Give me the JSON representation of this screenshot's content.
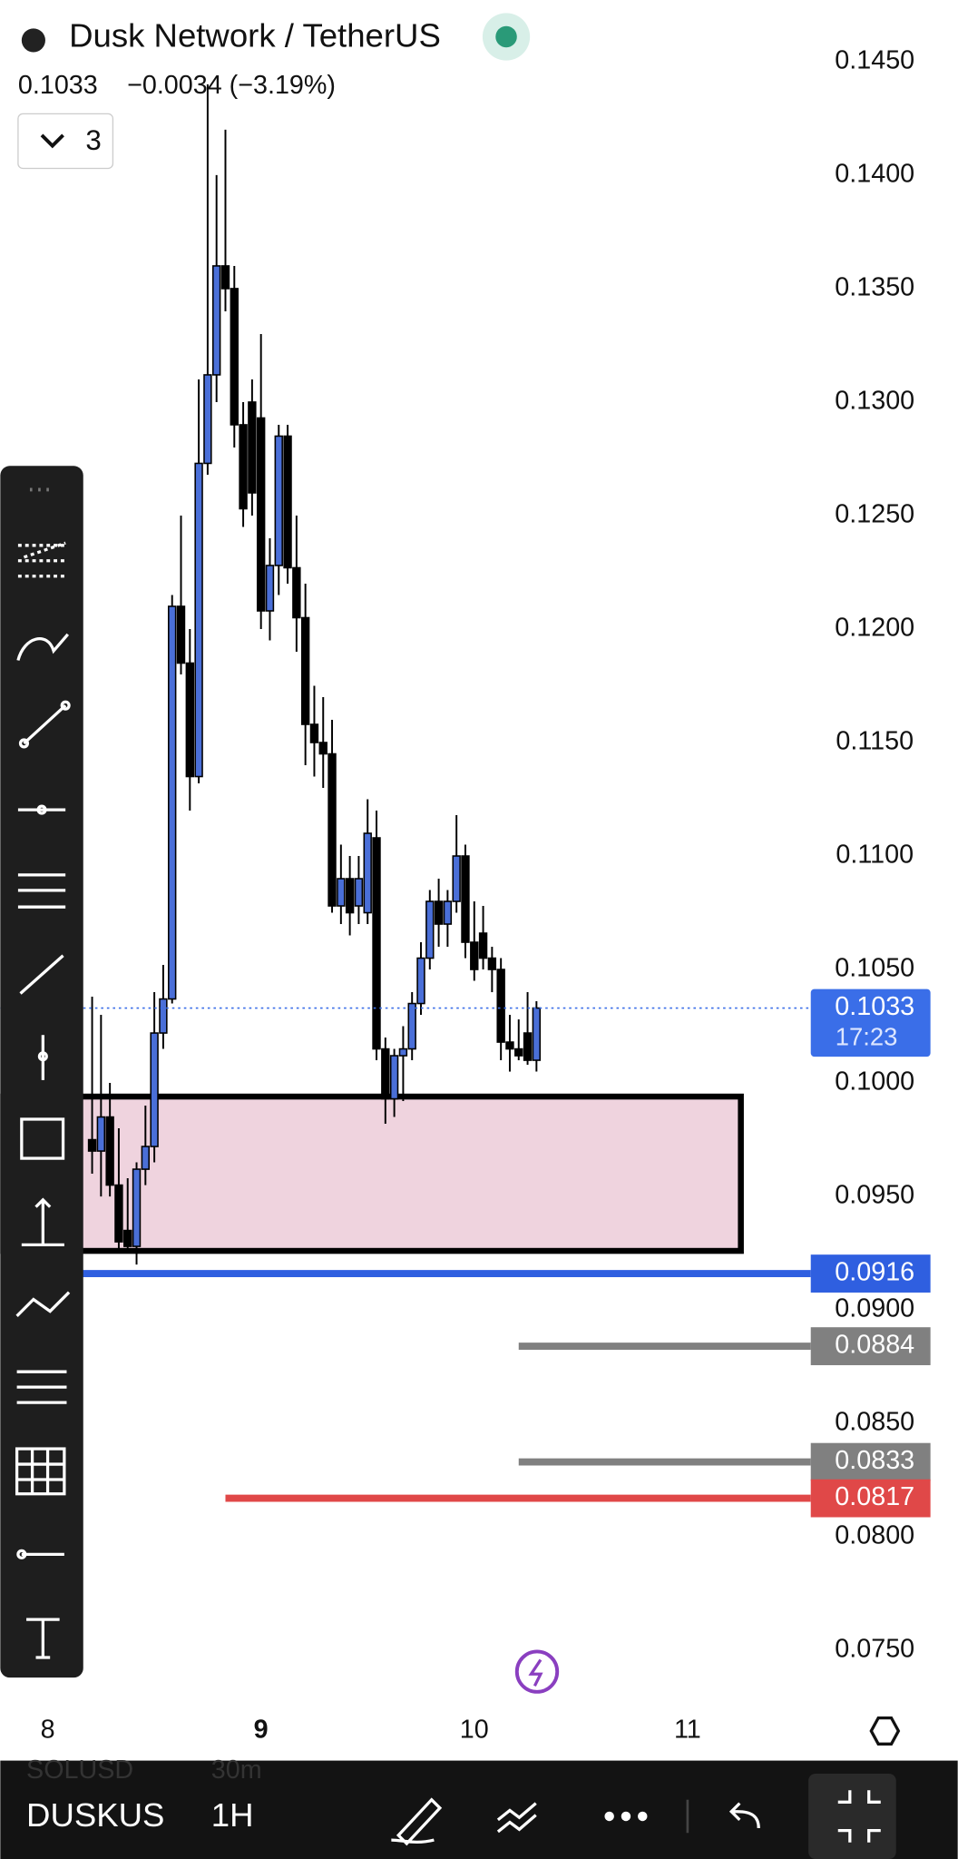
{
  "header": {
    "title": "Dusk Network / TetherUS",
    "price": "0.1033",
    "change": "−0.0034 (−3.19%)",
    "indicators": "3"
  },
  "chart_data": {
    "type": "candlestick",
    "open": [
      0.0975,
      0.097,
      0.0985,
      0.0955,
      0.0935,
      0.0928,
      0.0962,
      0.0972,
      0.1022,
      0.1037,
      0.121,
      0.1185,
      0.1135,
      0.1273,
      0.1312,
      0.136,
      0.135,
      0.129,
      0.13,
      0.1293,
      0.1208,
      0.1228,
      0.1285,
      0.1227,
      0.1205,
      0.1158,
      0.115,
      0.1145,
      0.1078,
      0.109,
      0.1078,
      0.1075,
      0.1108,
      0.1015,
      0.0993,
      0.1012,
      0.1015,
      0.1035,
      0.1055,
      0.108,
      0.107,
      0.108,
      0.11,
      0.1062,
      0.1066,
      0.1055,
      0.105,
      0.1018,
      0.1015,
      0.1022,
      0.101
    ],
    "high": [
      0.1038,
      0.103,
      0.1,
      0.098,
      0.0958,
      0.0965,
      0.099,
      0.104,
      0.1052,
      0.1215,
      0.125,
      0.12,
      0.131,
      0.144,
      0.14,
      0.142,
      0.136,
      0.13,
      0.131,
      0.133,
      0.124,
      0.129,
      0.129,
      0.125,
      0.122,
      0.1175,
      0.117,
      0.116,
      0.1105,
      0.11,
      0.11,
      0.1125,
      0.112,
      0.102,
      0.1015,
      0.1025,
      0.104,
      0.1062,
      0.1085,
      0.109,
      0.1085,
      0.1118,
      0.1105,
      0.108,
      0.1078,
      0.106,
      0.1055,
      0.103,
      0.1028,
      0.104,
      0.1036
    ],
    "low": [
      0.096,
      0.095,
      0.095,
      0.0925,
      0.0925,
      0.092,
      0.0955,
      0.0965,
      0.1015,
      0.1035,
      0.118,
      0.112,
      0.1132,
      0.1268,
      0.13,
      0.134,
      0.128,
      0.1245,
      0.125,
      0.12,
      0.1195,
      0.1215,
      0.122,
      0.119,
      0.114,
      0.1135,
      0.113,
      0.1075,
      0.107,
      0.1065,
      0.107,
      0.107,
      0.101,
      0.0982,
      0.0985,
      0.0992,
      0.101,
      0.103,
      0.105,
      0.106,
      0.106,
      0.1075,
      0.1055,
      0.1045,
      0.105,
      0.104,
      0.101,
      0.1005,
      0.101,
      0.1008,
      0.1005
    ],
    "close": [
      0.097,
      0.0985,
      0.0955,
      0.093,
      0.0928,
      0.0962,
      0.0972,
      0.1022,
      0.1037,
      0.121,
      0.1185,
      0.1135,
      0.1273,
      0.1312,
      0.136,
      0.135,
      0.129,
      0.1253,
      0.126,
      0.1208,
      0.1228,
      0.1285,
      0.1227,
      0.1205,
      0.1158,
      0.115,
      0.1145,
      0.1078,
      0.109,
      0.1075,
      0.109,
      0.111,
      0.1015,
      0.0993,
      0.1012,
      0.1015,
      0.1035,
      0.1055,
      0.108,
      0.107,
      0.108,
      0.11,
      0.1062,
      0.105,
      0.1055,
      0.105,
      0.1018,
      0.1015,
      0.1012,
      0.101,
      0.1033
    ],
    "up_color": "#4a6fd8",
    "down_color": "#000000",
    "xlim": [
      -10,
      80
    ],
    "xticks": [
      {
        "value": -5,
        "label": "8"
      },
      {
        "value": 19,
        "label": "9"
      },
      {
        "value": 43,
        "label": "10"
      },
      {
        "value": 67,
        "label": "11"
      }
    ],
    "ylim": [
      0.075,
      0.145
    ],
    "yticks": [
      {
        "value": 0.145,
        "label": "0.1450"
      },
      {
        "value": 0.14,
        "label": "0.1400"
      },
      {
        "value": 0.135,
        "label": "0.1350"
      },
      {
        "value": 0.13,
        "label": "0.1300"
      },
      {
        "value": 0.125,
        "label": "0.1250"
      },
      {
        "value": 0.12,
        "label": "0.1200"
      },
      {
        "value": 0.115,
        "label": "0.1150"
      },
      {
        "value": 0.11,
        "label": "0.1100"
      },
      {
        "value": 0.105,
        "label": "0.1050"
      },
      {
        "value": 0.1,
        "label": "0.1000"
      },
      {
        "value": 0.095,
        "label": "0.0950"
      },
      {
        "value": 0.09,
        "label": "0.0900"
      },
      {
        "value": 0.085,
        "label": "0.0850"
      },
      {
        "value": 0.08,
        "label": "0.0800"
      },
      {
        "value": 0.075,
        "label": "0.0750"
      }
    ],
    "last_price": 0.1033,
    "countdown": "17:23",
    "last_color": "#3a6ee8",
    "zone": {
      "top": 0.0994,
      "bottom": 0.0926,
      "start": -10,
      "end": 73,
      "fill": "#efd3de"
    },
    "levels": [
      {
        "value": 0.0916,
        "color": "#2f5fe0",
        "start": -10
      },
      {
        "value": 0.0884,
        "color": "#808080",
        "start": 48
      },
      {
        "value": 0.0833,
        "color": "#808080",
        "start": 48
      },
      {
        "value": 0.0817,
        "color": "#e04848",
        "start": 15
      }
    ]
  },
  "footer": {
    "symbol": "DUSKUS",
    "interval": "1H",
    "prev_symbol": "SOLUSD",
    "prev_interval": "30m"
  }
}
